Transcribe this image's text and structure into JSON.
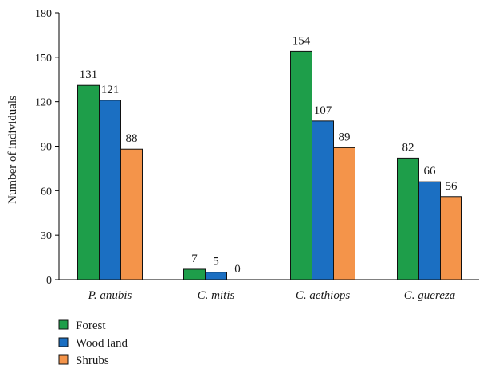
{
  "chart_data": {
    "type": "bar",
    "title": "",
    "xlabel": "",
    "ylabel": "Number of individuals",
    "ylim": [
      0,
      180
    ],
    "yticks": [
      0,
      30,
      60,
      90,
      120,
      150,
      180
    ],
    "grid": false,
    "legend_position": "bottom-left",
    "categories": [
      "P. anubis",
      "C. mitis",
      "C. aethiops",
      "C. guereza"
    ],
    "series": [
      {
        "name": "Forest",
        "color": "#1e9e4a",
        "values": [
          131,
          7,
          154,
          82
        ]
      },
      {
        "name": "Wood land",
        "color": "#1b6fc2",
        "values": [
          121,
          5,
          107,
          66
        ]
      },
      {
        "name": "Shrubs",
        "color": "#f4944a",
        "values": [
          88,
          0,
          89,
          56
        ]
      }
    ]
  }
}
